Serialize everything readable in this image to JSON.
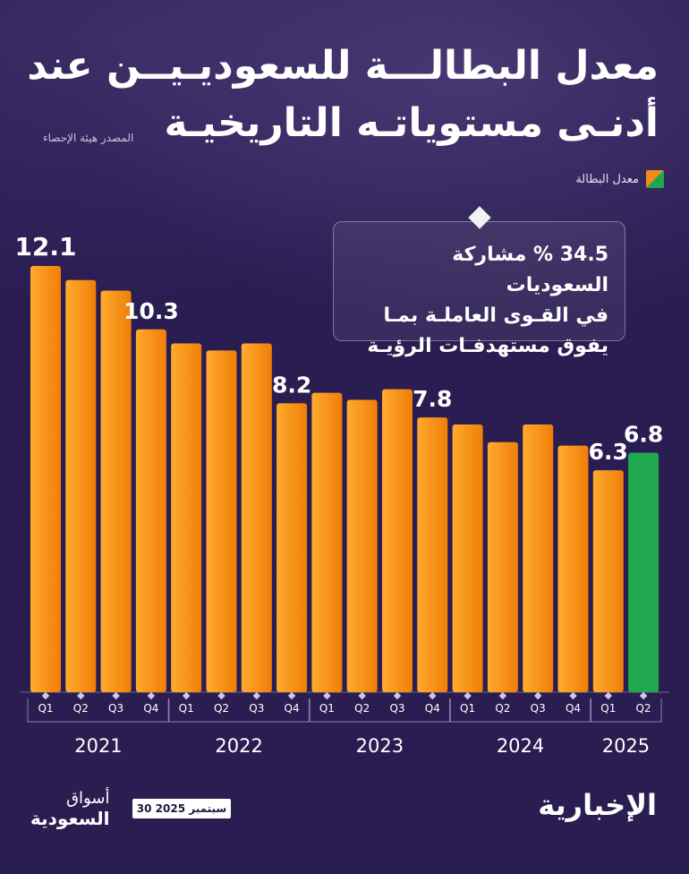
{
  "title_line1": "معدل البطالـــة للسعوديـيــن عند",
  "title_line2": "أدنـى مستوياتـه التاريخيـة",
  "source": "المصدر هيئة الإحصاء",
  "legend_label": "معدل البطالة",
  "callout": {
    "line1": "34.5 % مشاركة السعوديات",
    "line2": "في القـوى العاملـة بمـا",
    "line3": "يفوق مستهدفـات الرؤيـة"
  },
  "footer": {
    "date": "30 سبتمبر 2025",
    "publisher_line1": "أسواق",
    "publisher_line2": "السعودية",
    "brand": "الإخبارية"
  },
  "colors": {
    "background": "#2a1d52",
    "bar": "#f58a0f",
    "highlight": "#1fa84e"
  },
  "chart_data": {
    "type": "bar",
    "quarters": [
      "Q1",
      "Q2",
      "Q3",
      "Q4",
      "Q1",
      "Q2",
      "Q3",
      "Q4",
      "Q1",
      "Q2",
      "Q3",
      "Q4",
      "Q1",
      "Q2",
      "Q3",
      "Q4",
      "Q1",
      "Q2"
    ],
    "years": [
      {
        "label": "2021",
        "count": 4
      },
      {
        "label": "2022",
        "count": 4
      },
      {
        "label": "2023",
        "count": 4
      },
      {
        "label": "2024",
        "count": 4
      },
      {
        "label": "2025",
        "count": 2
      }
    ],
    "values": [
      12.1,
      11.7,
      11.4,
      10.3,
      9.9,
      9.7,
      9.9,
      8.2,
      8.5,
      8.3,
      8.6,
      7.8,
      7.6,
      7.1,
      7.6,
      7.0,
      6.3,
      6.8
    ],
    "labels": [
      "12.1",
      "",
      "",
      "10.3",
      "",
      "",
      "",
      "8.2",
      "",
      "",
      "",
      "7.8",
      "",
      "",
      "",
      "",
      "6.3",
      "6.8"
    ],
    "highlight_index": 17,
    "ylim": [
      0,
      12.1
    ]
  }
}
